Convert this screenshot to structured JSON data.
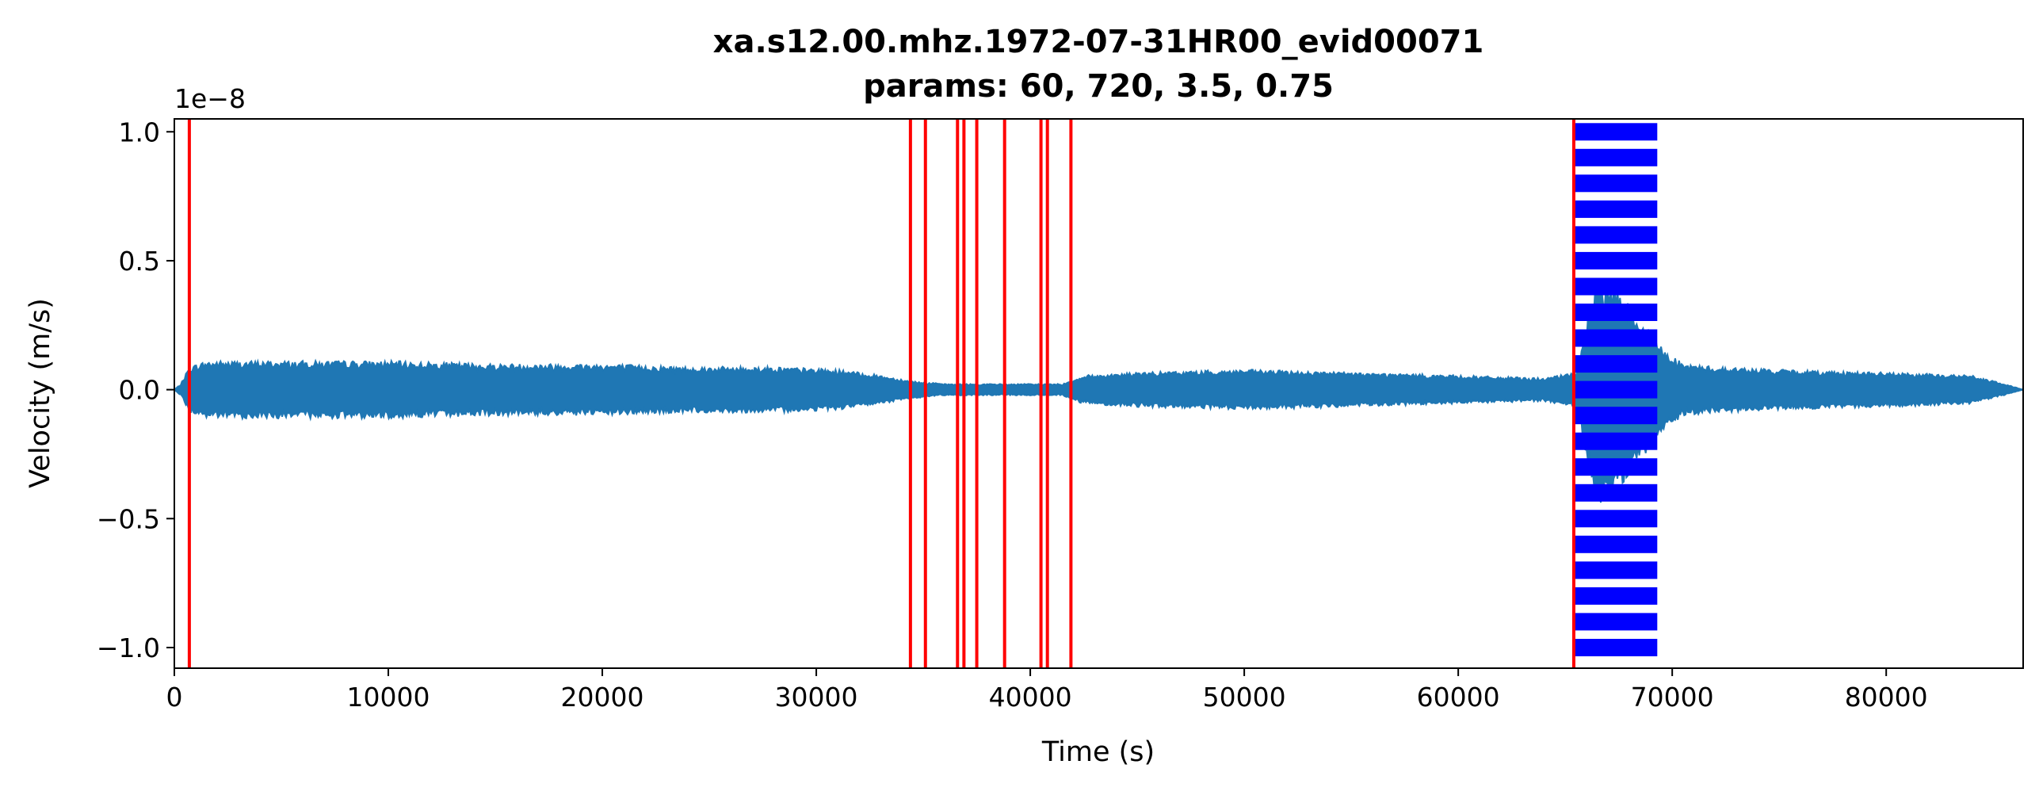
{
  "chart_data": {
    "type": "line",
    "title": "xa.s12.00.mhz.1972-07-31HR00_evid00071",
    "subtitle": "params: 60, 720, 3.5, 0.75",
    "xlabel": "Time (s)",
    "ylabel": "Velocity (m/s)",
    "y_offset_label": "1e−8",
    "xlim": [
      0,
      86400
    ],
    "ylim": [
      -1.08,
      1.05
    ],
    "x_ticks": [
      0,
      10000,
      20000,
      30000,
      40000,
      50000,
      60000,
      70000,
      80000
    ],
    "x_tick_labels": [
      "0",
      "10000",
      "20000",
      "30000",
      "40000",
      "50000",
      "60000",
      "70000",
      "80000"
    ],
    "y_ticks": [
      -1.0,
      -0.5,
      0.0,
      0.5,
      1.0
    ],
    "y_tick_labels": [
      "−1.0",
      "−0.5",
      "0.0",
      "0.5",
      "1.0"
    ],
    "grid": false,
    "colors": {
      "signal": "#1f77b4",
      "trigger_lines": "#ff0000",
      "detection_bars": "#0000ff"
    },
    "series": [
      {
        "description": "velocity trace amplitude envelope (units 1e-8 m/s)",
        "time": [
          0,
          300,
          700,
          1500,
          2000,
          5000,
          10000,
          15000,
          20000,
          24000,
          28000,
          31000,
          33000,
          34500,
          36000,
          38000,
          40000,
          41500,
          42500,
          45000,
          50000,
          55000,
          60000,
          64000,
          65500,
          66500,
          67500,
          68500,
          69500,
          70500,
          72000,
          75000,
          80000,
          84000,
          85500,
          86400
        ],
        "envelope": [
          0.0,
          0.02,
          0.08,
          0.1,
          0.1,
          0.1,
          0.1,
          0.09,
          0.09,
          0.08,
          0.08,
          0.07,
          0.05,
          0.03,
          0.02,
          0.02,
          0.02,
          0.02,
          0.05,
          0.06,
          0.07,
          0.06,
          0.05,
          0.04,
          0.06,
          0.4,
          0.35,
          0.25,
          0.15,
          0.09,
          0.08,
          0.07,
          0.06,
          0.05,
          0.02,
          0.0
        ]
      }
    ],
    "trigger_times": [
      700,
      34400,
      35100,
      36600,
      36900,
      37500,
      38800,
      40500,
      40800,
      41900,
      65400
    ],
    "detection_window": {
      "start": 65400,
      "end": 69300,
      "ymin": -1.0,
      "ymax": 1.0,
      "pattern": "dashed horizontal bars"
    }
  }
}
